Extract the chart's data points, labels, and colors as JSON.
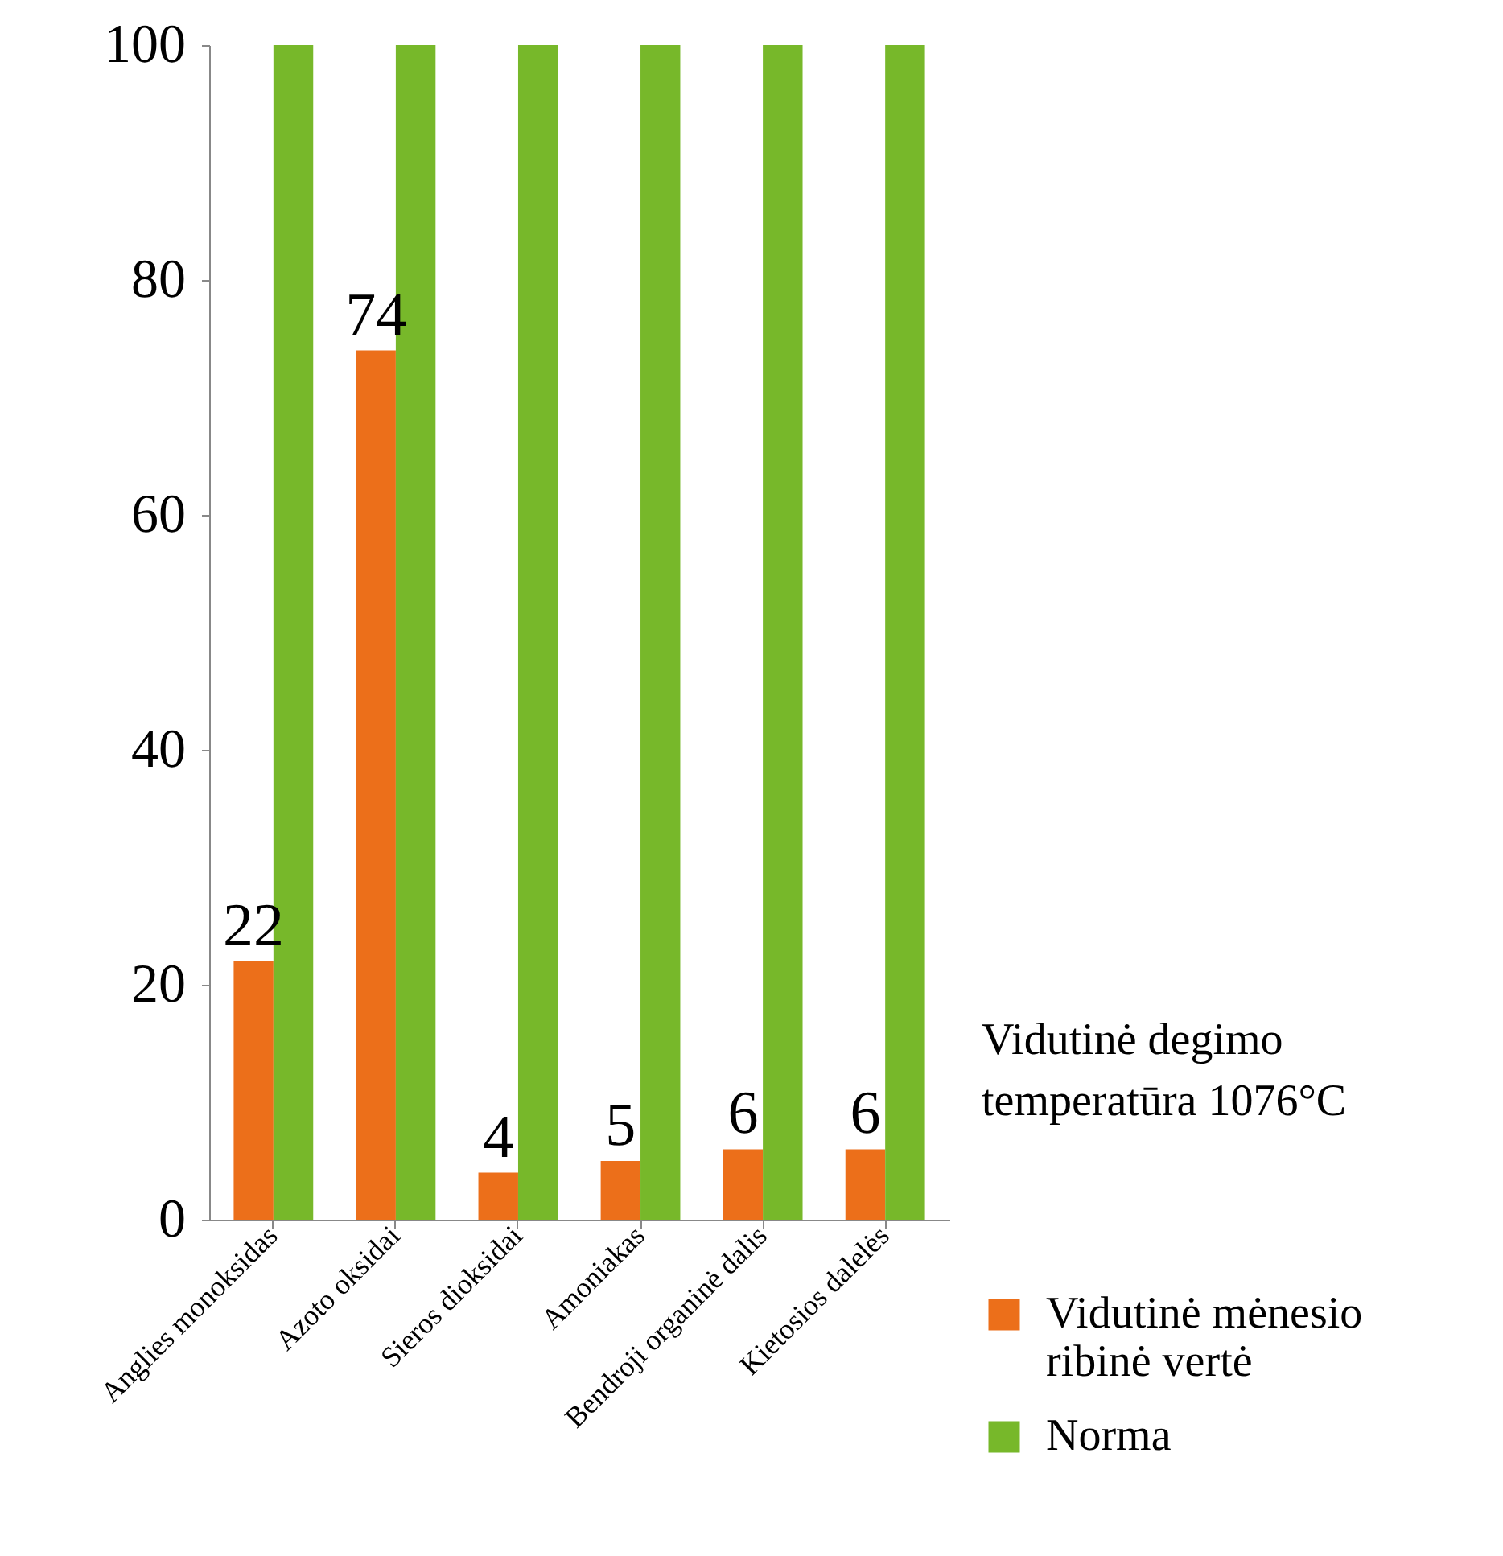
{
  "chart_data": {
    "type": "bar",
    "categories": [
      "Anglies monoksidas",
      "Azoto oksidai",
      "Sieros dioksidai",
      "Amoniakas",
      "Bendroji organinė dalis",
      "Kietosios dalelės"
    ],
    "series": [
      {
        "name": "Vidutinė mėnesio ribinė vertė",
        "color": "#ec6f1a",
        "values": [
          22,
          74,
          4,
          5,
          6,
          6
        ],
        "value_labels": [
          "22",
          "74",
          "4",
          "5",
          "6",
          "6"
        ]
      },
      {
        "name": "Norma",
        "color": "#77b82a",
        "values": [
          100,
          100,
          100,
          100,
          100,
          100
        ]
      }
    ],
    "ylim": [
      0,
      100
    ],
    "yticks": [
      0,
      20,
      40,
      60,
      80,
      100
    ],
    "grid": false,
    "legend": "bottom right",
    "annotations": [
      "Vidutinė degimo temperatūra 1076°C"
    ]
  }
}
